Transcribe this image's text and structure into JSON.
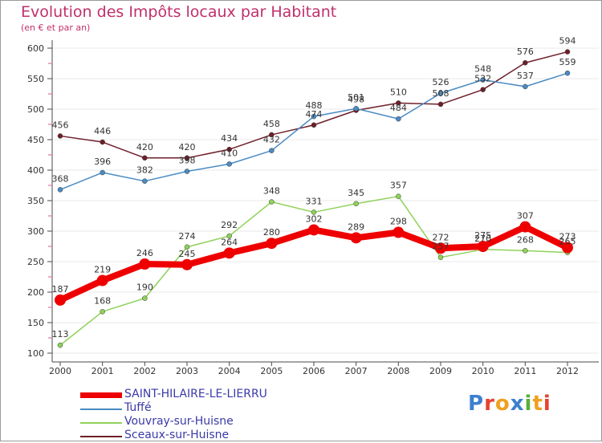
{
  "title": "Evolution des Impôts locaux par Habitant",
  "subtitle": "(en € et par an)",
  "logo_text": "Proxiti",
  "colors": {
    "title": "#c0306a",
    "axis": "#4a4a4a",
    "grid": "#e8e8e8",
    "legend_text": "#3a3aa8"
  },
  "chart_data": {
    "type": "line",
    "x": [
      "2000",
      "2001",
      "2002",
      "2003",
      "2004",
      "2005",
      "2006",
      "2007",
      "2008",
      "2009",
      "2010",
      "2011",
      "2012"
    ],
    "ylim": [
      100,
      600
    ],
    "yticks": [
      100,
      150,
      200,
      250,
      300,
      350,
      400,
      450,
      500,
      550,
      600
    ],
    "grid": true,
    "legend_position": "bottom-left",
    "series": [
      {
        "name": "SAINT-HILAIRE-LE-LIERRU",
        "color": "#ee0000",
        "values": [
          187,
          219,
          246,
          245,
          264,
          280,
          302,
          289,
          298,
          272,
          275,
          307,
          273
        ]
      },
      {
        "name": "Tuffé",
        "color": "#4a8bc4",
        "values": [
          368,
          396,
          382,
          398,
          410,
          432,
          488,
          501,
          484,
          526,
          548,
          537,
          559
        ]
      },
      {
        "name": "Vouvray-sur-Huisne",
        "color": "#8fd15a",
        "values": [
          113,
          168,
          190,
          274,
          292,
          348,
          331,
          345,
          357,
          257,
          270,
          268,
          265
        ]
      },
      {
        "name": "Sceaux-sur-Huisne",
        "color": "#6e1f2a",
        "values": [
          456,
          446,
          420,
          420,
          434,
          458,
          474,
          498,
          510,
          508,
          532,
          576,
          594
        ]
      }
    ],
    "data_labels": [
      [
        "187",
        "219",
        "246",
        "245",
        "264",
        "280",
        "302",
        "289",
        "298",
        "272",
        "275",
        "307",
        "273"
      ],
      [
        "368",
        "396",
        "382",
        "398",
        "410",
        "432",
        "488",
        "501",
        "484",
        "526",
        "548",
        "537",
        "559"
      ],
      [
        "113",
        "168",
        "190",
        "274",
        "292",
        "348",
        "331",
        "345",
        "357",
        "257",
        "270",
        "268",
        "265"
      ],
      [
        "456",
        "446",
        "420",
        "420",
        "434",
        "458",
        "474",
        "498",
        "510",
        "508",
        "532",
        "576",
        "594"
      ]
    ]
  },
  "legend": [
    {
      "label": "SAINT-HILAIRE-LE-LIERRU",
      "color": "#ee0000"
    },
    {
      "label": "Tuffé",
      "color": "#4a8bc4"
    },
    {
      "label": "Vouvray-sur-Huisne",
      "color": "#8fd15a"
    },
    {
      "label": "Sceaux-sur-Huisne",
      "color": "#6e1f2a"
    }
  ]
}
